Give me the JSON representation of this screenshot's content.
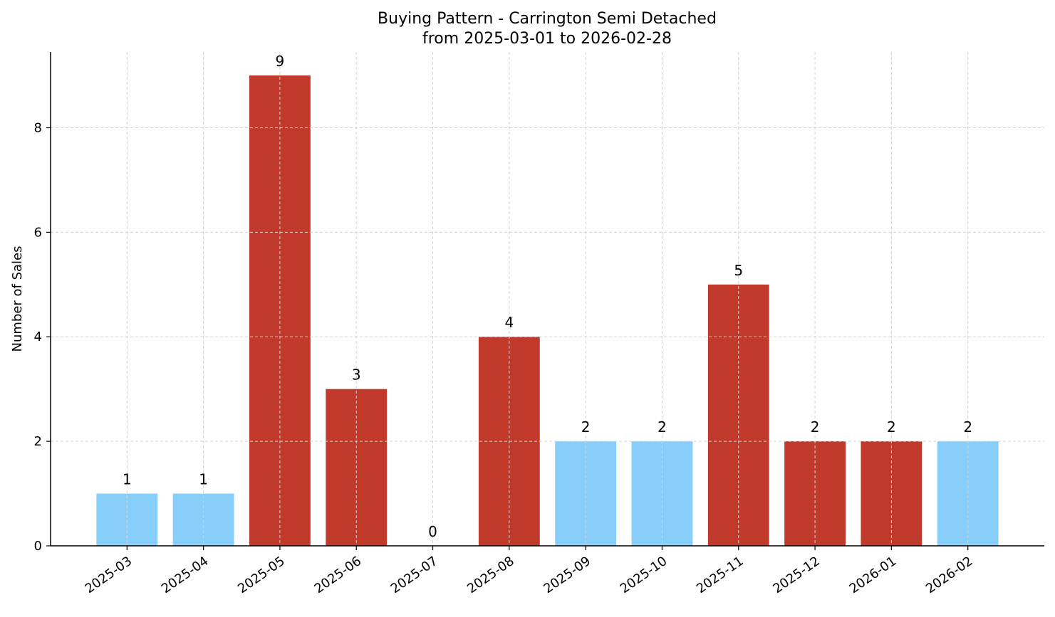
{
  "chart_data": {
    "type": "bar",
    "title": "Buying Pattern - Carrington Semi Detached",
    "subtitle": "from 2025-03-01 to 2026-02-28",
    "xlabel": "",
    "ylabel": "Number of Sales",
    "categories": [
      "2025-03",
      "2025-04",
      "2025-05",
      "2025-06",
      "2025-07",
      "2025-08",
      "2025-09",
      "2025-10",
      "2025-11",
      "2025-12",
      "2026-01",
      "2026-02"
    ],
    "values": [
      1,
      1,
      9,
      3,
      0,
      4,
      2,
      2,
      5,
      2,
      2,
      2
    ],
    "bar_colors": [
      "#87CEFA",
      "#87CEFA",
      "#C0392B",
      "#C0392B",
      "#C0392B",
      "#C0392B",
      "#87CEFA",
      "#87CEFA",
      "#C0392B",
      "#C0392B",
      "#C0392B",
      "#87CEFA"
    ],
    "ylim": [
      0,
      9.45
    ],
    "yticks": [
      0,
      2,
      4,
      6,
      8
    ],
    "grid": true,
    "data_labels": true
  }
}
